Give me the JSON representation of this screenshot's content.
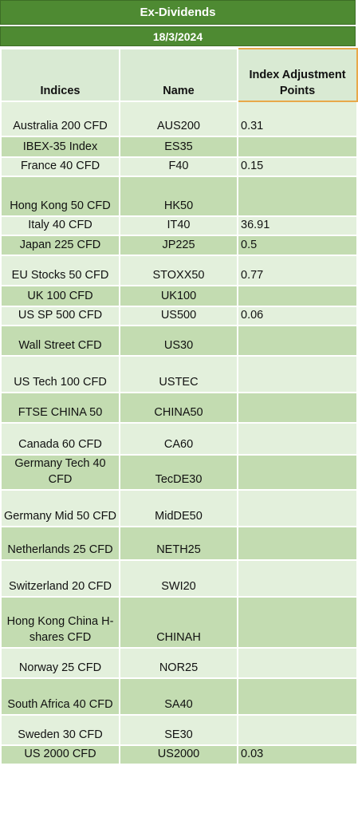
{
  "title": "Ex-Dividends",
  "date": "18/3/2024",
  "columns": {
    "indices": "Indices",
    "name": "Name",
    "points": "Index Adjustment Points"
  },
  "rows": [
    {
      "index": "Australia 200 CFD",
      "name": "AUS200",
      "points": "0.31"
    },
    {
      "index": "IBEX-35 Index",
      "name": "ES35",
      "points": ""
    },
    {
      "index": "France 40 CFD",
      "name": "F40",
      "points": "0.15"
    },
    {
      "index": "Hong Kong 50 CFD",
      "name": "HK50",
      "points": ""
    },
    {
      "index": "Italy 40 CFD",
      "name": "IT40",
      "points": "36.91"
    },
    {
      "index": "Japan 225 CFD",
      "name": "JP225",
      "points": "0.5"
    },
    {
      "index": "EU Stocks 50 CFD",
      "name": "STOXX50",
      "points": "0.77"
    },
    {
      "index": "UK 100 CFD",
      "name": "UK100",
      "points": ""
    },
    {
      "index": "US SP 500 CFD",
      "name": "US500",
      "points": "0.06"
    },
    {
      "index": "Wall Street CFD",
      "name": "US30",
      "points": ""
    },
    {
      "index": "US Tech 100 CFD",
      "name": "USTEC",
      "points": ""
    },
    {
      "index": "FTSE CHINA 50",
      "name": "CHINA50",
      "points": ""
    },
    {
      "index": "Canada 60 CFD",
      "name": "CA60",
      "points": ""
    },
    {
      "index": "Germany Tech 40 CFD",
      "name": "TecDE30",
      "points": ""
    },
    {
      "index": "Germany Mid 50 CFD",
      "name": "MidDE50",
      "points": ""
    },
    {
      "index": "Netherlands 25 CFD",
      "name": "NETH25",
      "points": ""
    },
    {
      "index": "Switzerland 20 CFD",
      "name": "SWI20",
      "points": ""
    },
    {
      "index": "Hong Kong China H-shares CFD",
      "name": "CHINAH",
      "points": ""
    },
    {
      "index": "Norway 25 CFD",
      "name": "NOR25",
      "points": ""
    },
    {
      "index": "South Africa 40 CFD",
      "name": "SA40",
      "points": ""
    },
    {
      "index": "Sweden 30 CFD",
      "name": "SE30",
      "points": ""
    },
    {
      "index": "US 2000 CFD",
      "name": "US2000",
      "points": "0.03"
    }
  ],
  "colors": {
    "header_green": "#4e8a32",
    "row_light": "#e3f0dc",
    "row_dark": "#c3dcb1",
    "highlight_border": "#e8a84a"
  }
}
